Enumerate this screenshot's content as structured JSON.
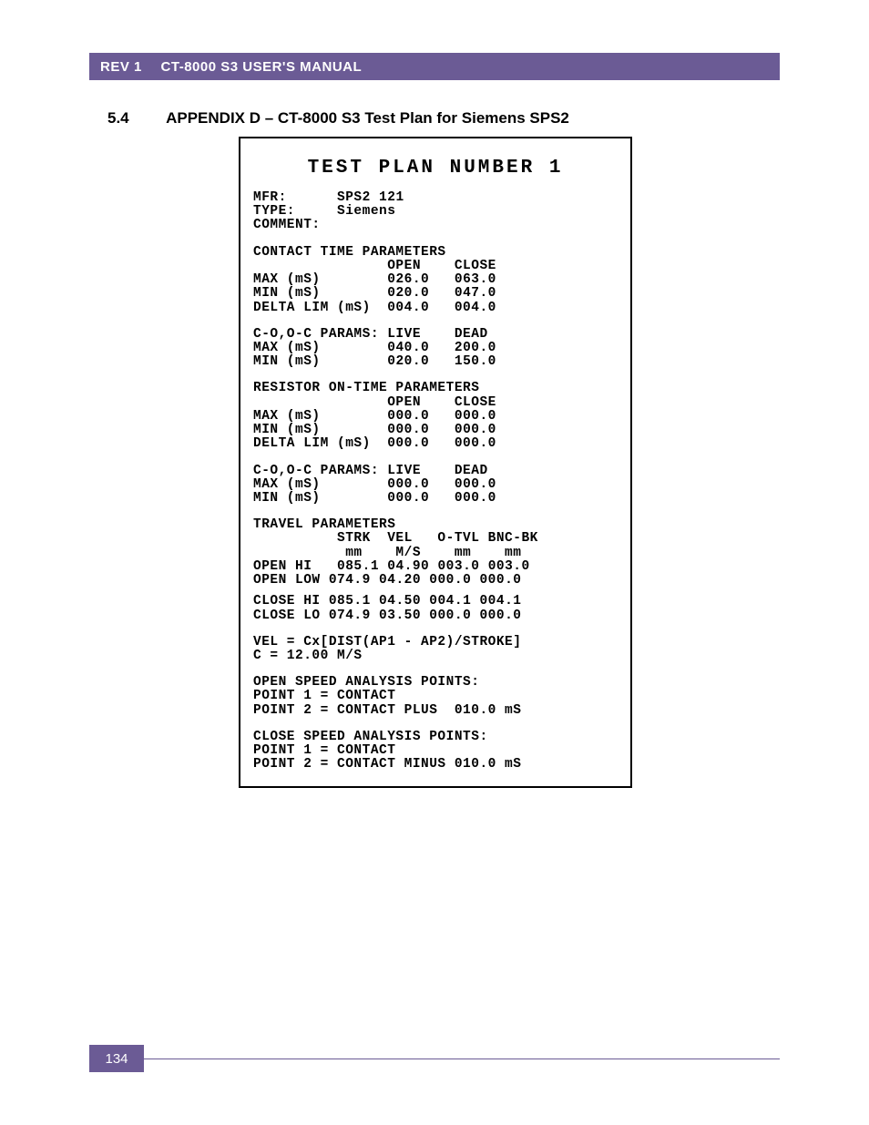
{
  "header": {
    "rev": "REV 1",
    "manual_title": "CT-8000 S3 USER'S MANUAL"
  },
  "section": {
    "number": "5.4",
    "title": "APPENDIX D – CT-8000 S3 Test Plan for Siemens SPS2"
  },
  "printout": {
    "title": "TEST PLAN NUMBER 1",
    "info": {
      "mfr_label": "MFR:",
      "mfr_value": "SPS2 121",
      "type_label": "TYPE:",
      "type_value": "Siemens",
      "comment_label": "COMMENT:"
    },
    "contact_params": {
      "heading": "CONTACT TIME PARAMETERS",
      "col_open": "OPEN",
      "col_close": "CLOSE",
      "rows": [
        {
          "label": "MAX (mS)",
          "open": "026.0",
          "close": "063.0"
        },
        {
          "label": "MIN (mS)",
          "open": "020.0",
          "close": "047.0"
        },
        {
          "label": "DELTA LIM (mS)",
          "open": "004.0",
          "close": "004.0"
        }
      ]
    },
    "coc_params1": {
      "heading": "C-O,O-C PARAMS:",
      "col_live": "LIVE",
      "col_dead": "DEAD",
      "rows": [
        {
          "label": "MAX (mS)",
          "live": "040.0",
          "dead": "200.0"
        },
        {
          "label": "MIN (mS)",
          "live": "020.0",
          "dead": "150.0"
        }
      ]
    },
    "resistor": {
      "heading": "RESISTOR ON-TIME PARAMETERS",
      "col_open": "OPEN",
      "col_close": "CLOSE",
      "rows": [
        {
          "label": "MAX (mS)",
          "open": "000.0",
          "close": "000.0"
        },
        {
          "label": "MIN (mS)",
          "open": "000.0",
          "close": "000.0"
        },
        {
          "label": "DELTA LIM (mS)",
          "open": "000.0",
          "close": "000.0"
        }
      ]
    },
    "coc_params2": {
      "heading": "C-O,O-C PARAMS:",
      "col_live": "LIVE",
      "col_dead": "DEAD",
      "rows": [
        {
          "label": "MAX (mS)",
          "live": "000.0",
          "dead": "000.0"
        },
        {
          "label": "MIN (mS)",
          "live": "000.0",
          "dead": "000.0"
        }
      ]
    },
    "travel": {
      "heading": "TRAVEL PARAMETERS",
      "cols1": "STRK  VEL   O-TVL BNC-BK",
      "cols2": "mm    M/S    mm    mm",
      "rows": [
        {
          "label": "OPEN HI ",
          "strk": "085.1",
          "vel": "04.90",
          "otvl": "003.0",
          "bnc": "003.0"
        },
        {
          "label": "OPEN LOW",
          "strk": "074.9",
          "vel": "04.20",
          "otvl": "000.0",
          "bnc": "000.0"
        }
      ],
      "rows2": [
        {
          "label": "CLOSE HI",
          "strk": "085.1",
          "vel": "04.50",
          "otvl": "004.1",
          "bnc": "004.1"
        },
        {
          "label": "CLOSE LO",
          "strk": "074.9",
          "vel": "03.50",
          "otvl": "000.0",
          "bnc": "000.0"
        }
      ]
    },
    "vel_formula": {
      "line1": "VEL = Cx[DIST(AP1 - AP2)/STROKE]",
      "line2": "C = 12.00 M/S"
    },
    "open_speed": {
      "heading": "OPEN SPEED ANALYSIS POINTS:",
      "p1": "POINT 1 = CONTACT",
      "p2": "POINT 2 = CONTACT PLUS  010.0 mS"
    },
    "close_speed": {
      "heading": "CLOSE SPEED ANALYSIS POINTS:",
      "p1": "POINT 1 = CONTACT",
      "p2": "POINT 2 = CONTACT MINUS 010.0 mS"
    }
  },
  "footer": {
    "page": "134"
  },
  "colors": {
    "accent": "#6b5b95",
    "text": "#000000",
    "bg": "#ffffff"
  }
}
